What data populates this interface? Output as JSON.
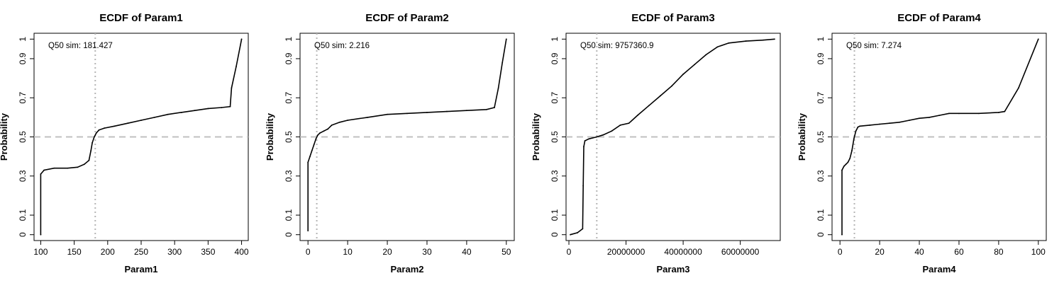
{
  "figure": {
    "layout": "1 row x 4 panels",
    "line_color": "#000000",
    "median_line_color": "#b4b4b4",
    "reference_line_color": "#c0c0c0"
  },
  "chart_data": [
    {
      "type": "line",
      "subtype": "ecdf-step",
      "title": "ECDF of Param1",
      "xlabel": "Param1",
      "ylabel": "Probability",
      "xlim": [
        90,
        410
      ],
      "ylim": [
        -0.03,
        1.03
      ],
      "x_ticks": [
        100,
        150,
        200,
        250,
        300,
        350,
        400
      ],
      "x_tick_labels": [
        "100",
        "150",
        "200",
        "250",
        "300",
        "350",
        "400"
      ],
      "y_ticks": [
        0,
        0.1,
        0.3,
        0.5,
        0.7,
        0.9,
        1
      ],
      "y_tick_labels": [
        "0",
        "0.1",
        "0.3",
        "0.5",
        "0.7",
        "0.9",
        "1"
      ],
      "hline_y": 0.5,
      "median_x": 181.427,
      "annotation": "Q50 sim:  181.427",
      "x": [
        100,
        100,
        105,
        120,
        140,
        155,
        165,
        172,
        175,
        177,
        180,
        183,
        187,
        195,
        210,
        230,
        250,
        270,
        290,
        310,
        330,
        350,
        370,
        383,
        385,
        392,
        400
      ],
      "y": [
        0.0,
        0.31,
        0.33,
        0.34,
        0.34,
        0.345,
        0.36,
        0.38,
        0.43,
        0.47,
        0.5,
        0.52,
        0.535,
        0.545,
        0.555,
        0.57,
        0.585,
        0.6,
        0.615,
        0.625,
        0.635,
        0.645,
        0.65,
        0.655,
        0.75,
        0.86,
        1.0
      ]
    },
    {
      "type": "line",
      "subtype": "ecdf-step",
      "title": "ECDF of Param2",
      "xlabel": "Param2",
      "ylabel": "Probability",
      "xlim": [
        -2,
        52
      ],
      "ylim": [
        -0.03,
        1.03
      ],
      "x_ticks": [
        0,
        10,
        20,
        30,
        40,
        50
      ],
      "x_tick_labels": [
        "0",
        "10",
        "20",
        "30",
        "40",
        "50"
      ],
      "y_ticks": [
        0,
        0.1,
        0.3,
        0.5,
        0.7,
        0.9,
        1
      ],
      "y_tick_labels": [
        "0",
        "0.1",
        "0.3",
        "0.5",
        "0.7",
        "0.9",
        "1"
      ],
      "hline_y": 0.5,
      "median_x": 2.216,
      "annotation": "Q50 sim:  2.216",
      "x": [
        0,
        0,
        0.5,
        1,
        1.5,
        2,
        2.5,
        3,
        4,
        5,
        6,
        8,
        10,
        15,
        20,
        25,
        30,
        35,
        40,
        45,
        47,
        48,
        49,
        50
      ],
      "y": [
        0.02,
        0.37,
        0.4,
        0.43,
        0.46,
        0.49,
        0.51,
        0.52,
        0.53,
        0.54,
        0.56,
        0.575,
        0.585,
        0.6,
        0.615,
        0.62,
        0.625,
        0.63,
        0.635,
        0.64,
        0.65,
        0.75,
        0.88,
        1.0
      ]
    },
    {
      "type": "line",
      "subtype": "ecdf-step",
      "title": "ECDF of Param3",
      "xlabel": "Param3",
      "ylabel": "Probability",
      "xlim": [
        -1000000,
        74000000
      ],
      "ylim": [
        -0.03,
        1.03
      ],
      "x_ticks": [
        0,
        20000000,
        40000000,
        60000000
      ],
      "x_tick_labels": [
        "0",
        "20000000",
        "40000000",
        "60000000"
      ],
      "y_ticks": [
        0,
        0.1,
        0.3,
        0.5,
        0.7,
        0.9,
        1
      ],
      "y_tick_labels": [
        "0",
        "0.1",
        "0.3",
        "0.5",
        "0.7",
        "0.9",
        "1"
      ],
      "hline_y": 0.5,
      "median_x": 9757360.9,
      "annotation": "Q50 sim:  9757360.9",
      "x": [
        500000,
        3000000,
        4800000,
        5000000,
        5200000,
        5600000,
        7000000,
        9757360.9,
        12000000,
        15000000,
        18000000,
        21000000,
        24000000,
        28000000,
        32000000,
        36000000,
        40000000,
        44000000,
        48000000,
        52000000,
        56000000,
        62000000,
        68000000,
        72000000
      ],
      "y": [
        0.0,
        0.01,
        0.03,
        0.25,
        0.45,
        0.48,
        0.49,
        0.5,
        0.51,
        0.53,
        0.56,
        0.57,
        0.61,
        0.66,
        0.71,
        0.76,
        0.82,
        0.87,
        0.92,
        0.96,
        0.98,
        0.99,
        0.995,
        1.0
      ]
    },
    {
      "type": "line",
      "subtype": "ecdf-step",
      "title": "ECDF of Param4",
      "xlabel": "Param4",
      "ylabel": "Probability",
      "xlim": [
        -4,
        104
      ],
      "ylim": [
        -0.03,
        1.03
      ],
      "x_ticks": [
        0,
        20,
        40,
        60,
        80,
        100
      ],
      "x_tick_labels": [
        "0",
        "20",
        "40",
        "60",
        "80",
        "100"
      ],
      "y_ticks": [
        0,
        0.1,
        0.3,
        0.5,
        0.7,
        0.9,
        1
      ],
      "y_tick_labels": [
        "0",
        "0.1",
        "0.3",
        "0.5",
        "0.7",
        "0.9",
        "1"
      ],
      "hline_y": 0.5,
      "median_x": 7.274,
      "annotation": "Q50 sim:  7.274",
      "x": [
        1,
        1,
        2,
        3,
        4,
        5,
        6,
        7,
        8,
        9,
        10,
        15,
        20,
        25,
        30,
        35,
        40,
        45,
        50,
        55,
        60,
        70,
        80,
        83,
        90,
        100
      ],
      "y": [
        0.0,
        0.33,
        0.35,
        0.36,
        0.37,
        0.39,
        0.43,
        0.49,
        0.53,
        0.55,
        0.555,
        0.56,
        0.565,
        0.57,
        0.575,
        0.585,
        0.595,
        0.6,
        0.61,
        0.62,
        0.62,
        0.62,
        0.625,
        0.63,
        0.75,
        1.0
      ]
    }
  ]
}
